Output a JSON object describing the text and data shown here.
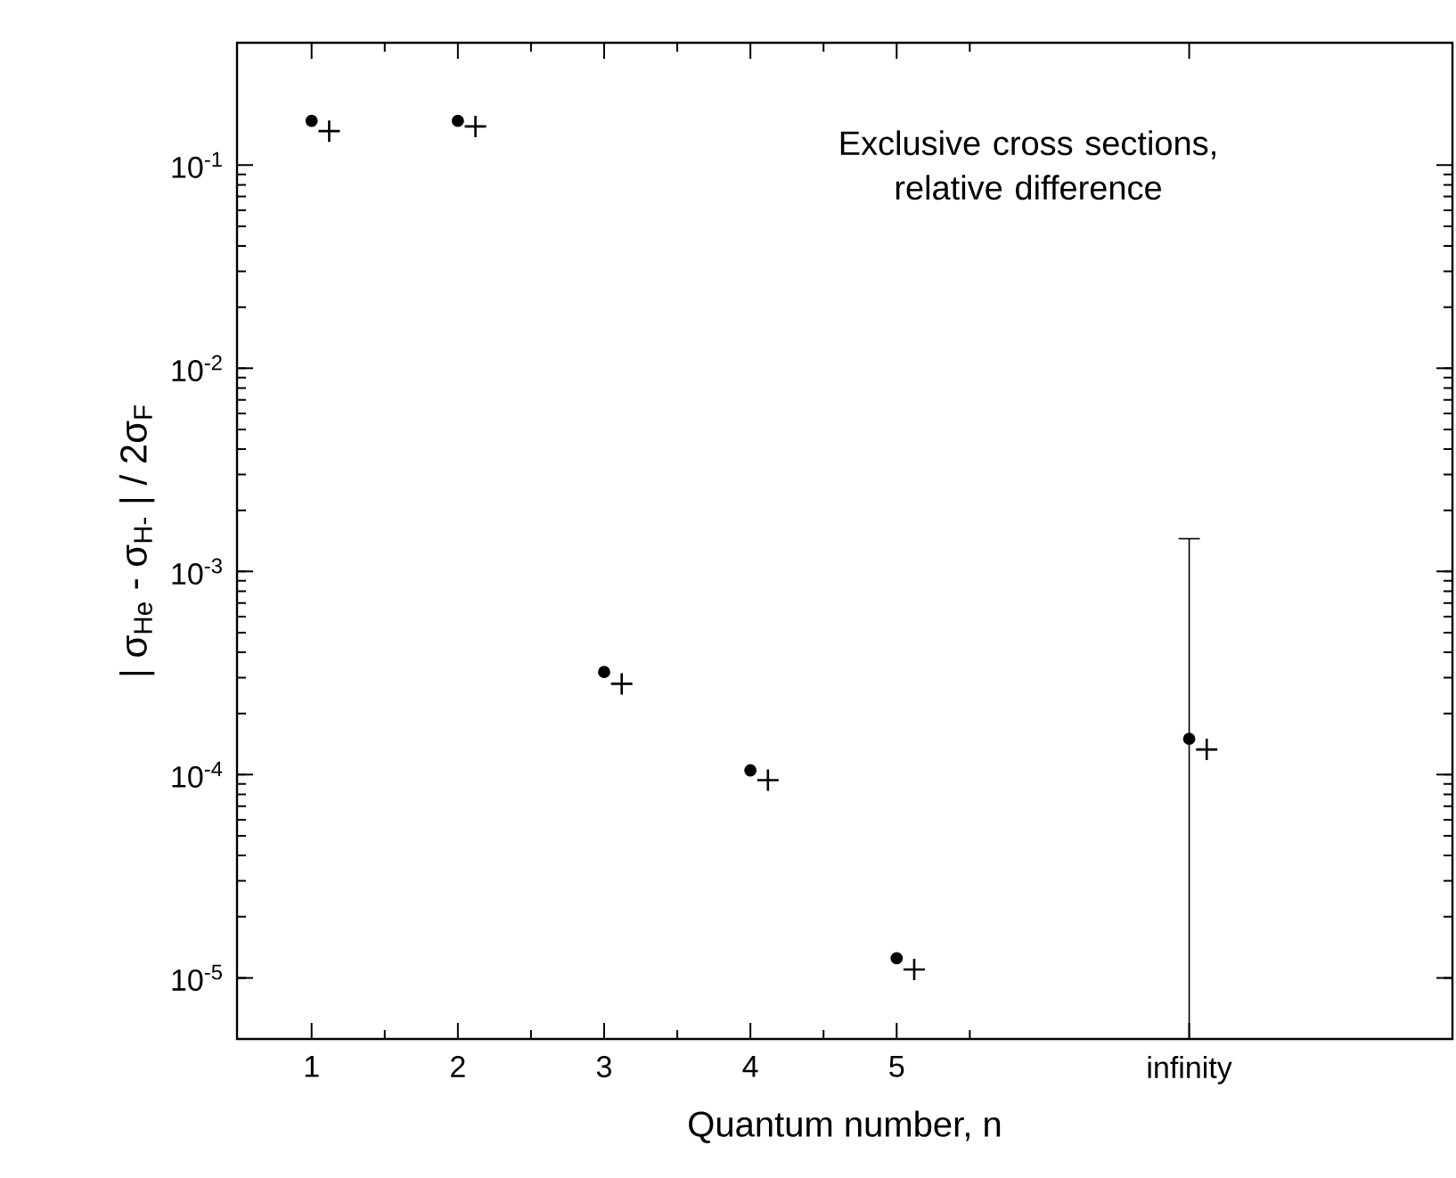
{
  "chart_data": {
    "type": "scatter",
    "xlabel": "Quantum number,  n",
    "ylabel": "| σ$_{He}$ - σ$_{H-}$ | / 2σ$_{F}$",
    "categories": [
      "1",
      "2",
      "3",
      "4",
      "5",
      "infinity"
    ],
    "series": [
      {
        "color": "#000000",
        "marker": "circle",
        "values": [
          0.165,
          0.165,
          0.00032,
          0.000105,
          1.25e-05,
          0.00015
        ],
        "errors": [
          null,
          null,
          null,
          null,
          null,
          [
            5e-06,
            0.00145
          ]
        ]
      },
      {
        "color": "#000000",
        "marker": "cross",
        "values": [
          0.147,
          0.155,
          0.00028,
          9.4e-05,
          1.1e-05,
          0.000133
        ]
      }
    ],
    "log": "y",
    "ylim": [
      5e-06,
      0.4
    ],
    "yticks": [
      {
        "value": 1e-05,
        "label": "10$^{-5}$"
      },
      {
        "value": 0.0001,
        "label": "10$^{-4}$"
      },
      {
        "value": 0.001,
        "label": "10$^{-3}$"
      },
      {
        "value": 0.01,
        "label": "10$^{-2}$"
      },
      {
        "value": 0.1,
        "label": "10$^{-1}$"
      }
    ],
    "grid": false,
    "annotations": [
      "Exclusive cross sections, relative difference"
    ]
  }
}
